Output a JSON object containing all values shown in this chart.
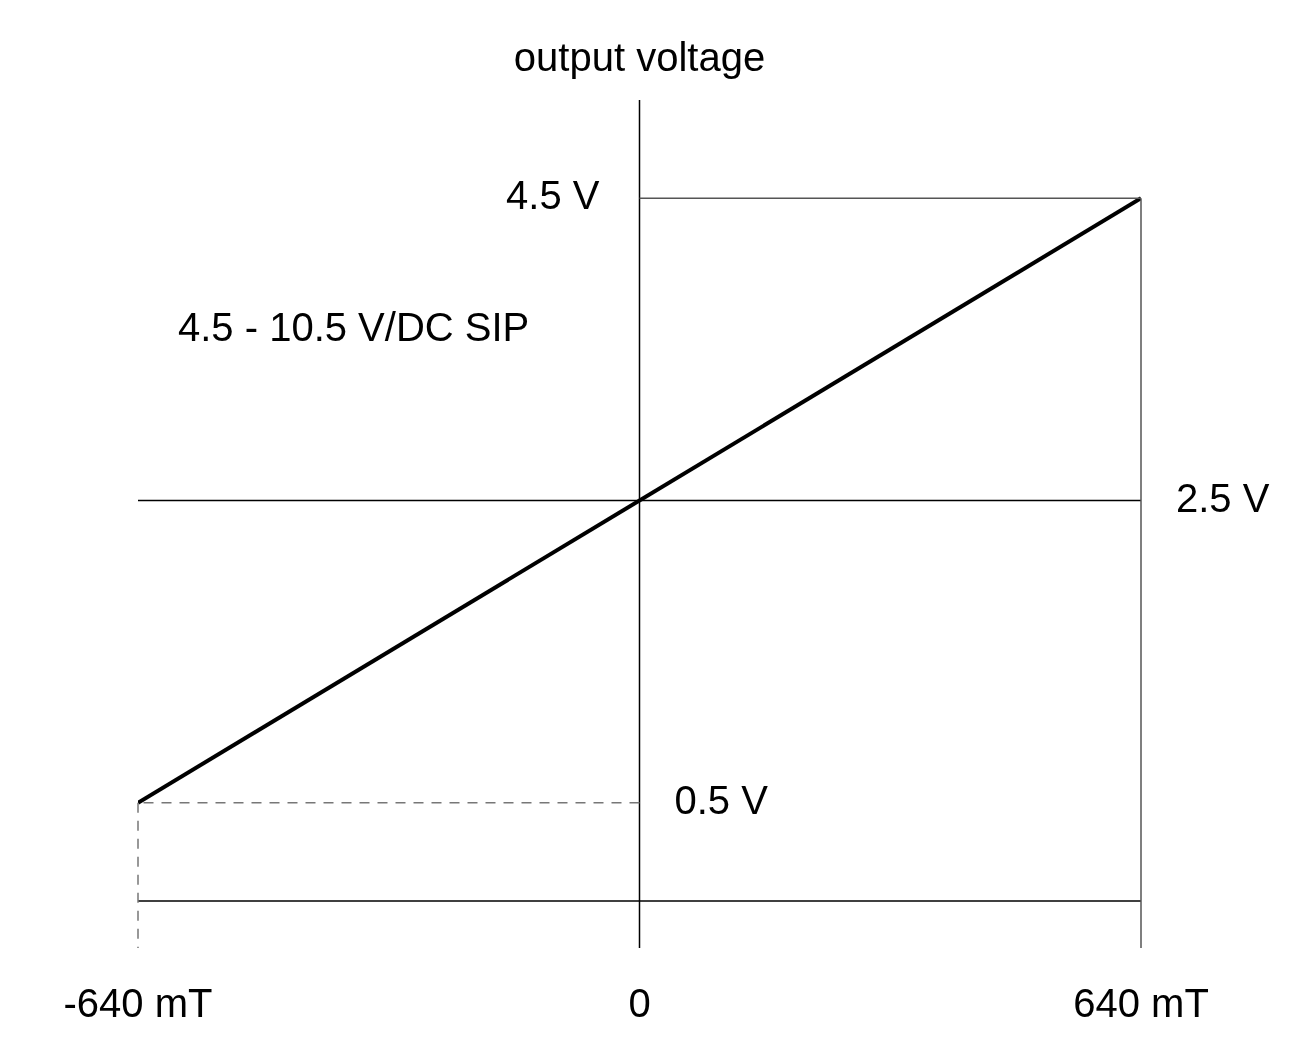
{
  "chart_data": {
    "type": "line",
    "ylabel": "output voltage",
    "x": [
      -640,
      640
    ],
    "series": [
      {
        "color": "#000000",
        "values": [
          0.5,
          4.5
        ]
      }
    ],
    "xlim": [
      -640,
      640
    ],
    "ylim": [
      -0.15,
      5.15
    ],
    "xticks": [
      {
        "value": -640,
        "label": "-640 mT"
      },
      {
        "value": 0,
        "label": "0"
      },
      {
        "value": 640,
        "label": "640 mT"
      }
    ],
    "ref_lines": [
      {
        "axis": "y",
        "value": 4.5,
        "label": "4.5 V",
        "color": "#555555",
        "line_style": "solid"
      },
      {
        "axis": "y",
        "value": 2.5,
        "label": "2.5 V",
        "color": "#000000",
        "line_style": "solid"
      },
      {
        "axis": "y",
        "value": 0.5,
        "label": "0.5 V",
        "color": "#777777",
        "line_style": "dashed"
      },
      {
        "axis": "x",
        "value": 640,
        "color": "#555555",
        "line_style": "solid"
      },
      {
        "axis": "x",
        "value": -640,
        "color": "#777777",
        "line_style": "dashed"
      }
    ],
    "annotations": [
      "4.5 - 10.5 V/DC SIP"
    ],
    "marker": "none",
    "line_style": "solid",
    "legend": false
  }
}
